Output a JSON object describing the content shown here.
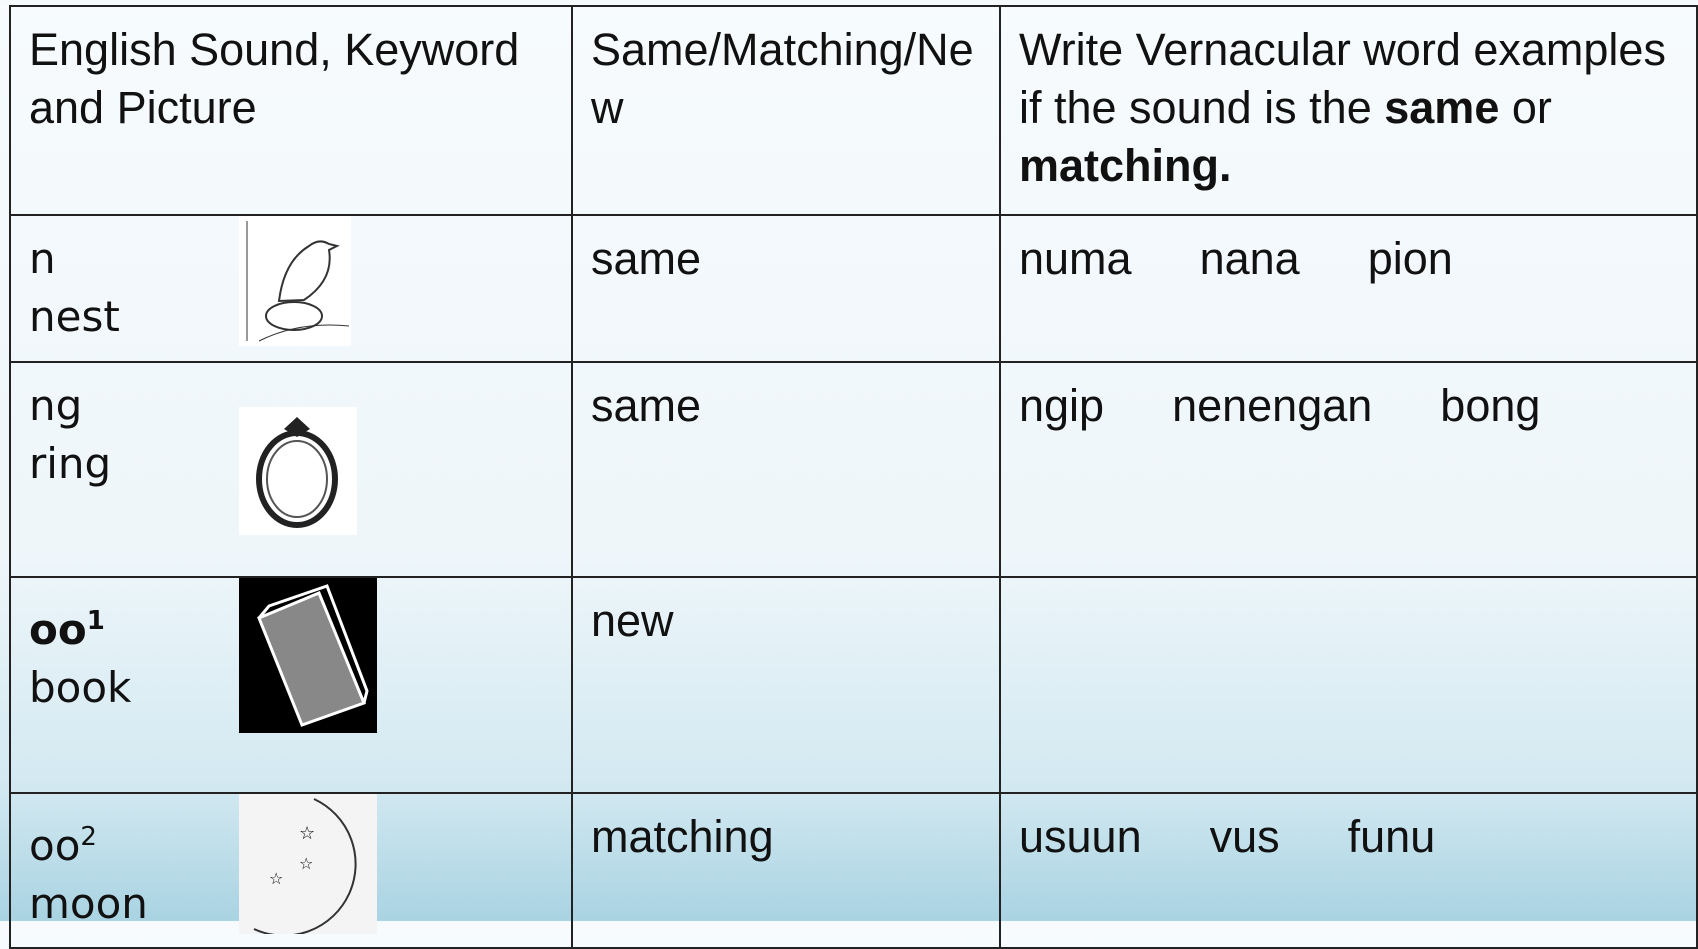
{
  "table": {
    "header": {
      "col1": "English Sound, Keyword and Picture",
      "col2": "Same/Matching/New",
      "col3": {
        "text": "Write Vernacular word examples if the sound is the",
        "bold1": "same",
        "mid": "or",
        "bold2": "matching."
      }
    },
    "rows": [
      {
        "sound": "n",
        "keyword": "nest",
        "status": "same",
        "examples": [
          "numa",
          "nana",
          "pion"
        ]
      },
      {
        "sound": "ng",
        "keyword": "ring",
        "status": "same",
        "examples": [
          "ngip",
          "nenengan",
          "bong"
        ]
      },
      {
        "sound": "oo",
        "sup": "1",
        "keyword": "book",
        "status": "new",
        "examples": []
      },
      {
        "sound": "oo",
        "sup": "2",
        "keyword": "moon",
        "status": "matching",
        "examples": [
          "usuun",
          "vus",
          "funu"
        ]
      }
    ]
  }
}
